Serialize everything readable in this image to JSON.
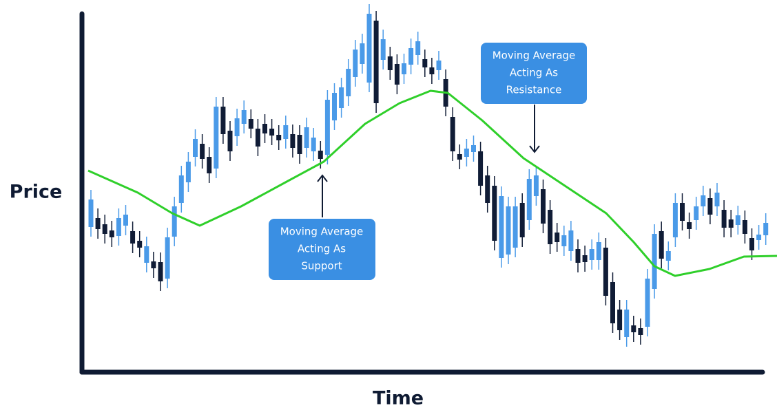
{
  "axes": {
    "y_label": "Price",
    "x_label": "Time"
  },
  "annotations": [
    {
      "lines": [
        "Moving Average",
        "Acting As",
        "Support"
      ]
    },
    {
      "lines": [
        "Moving Average",
        "Acting As",
        "Resistance"
      ]
    }
  ]
}
